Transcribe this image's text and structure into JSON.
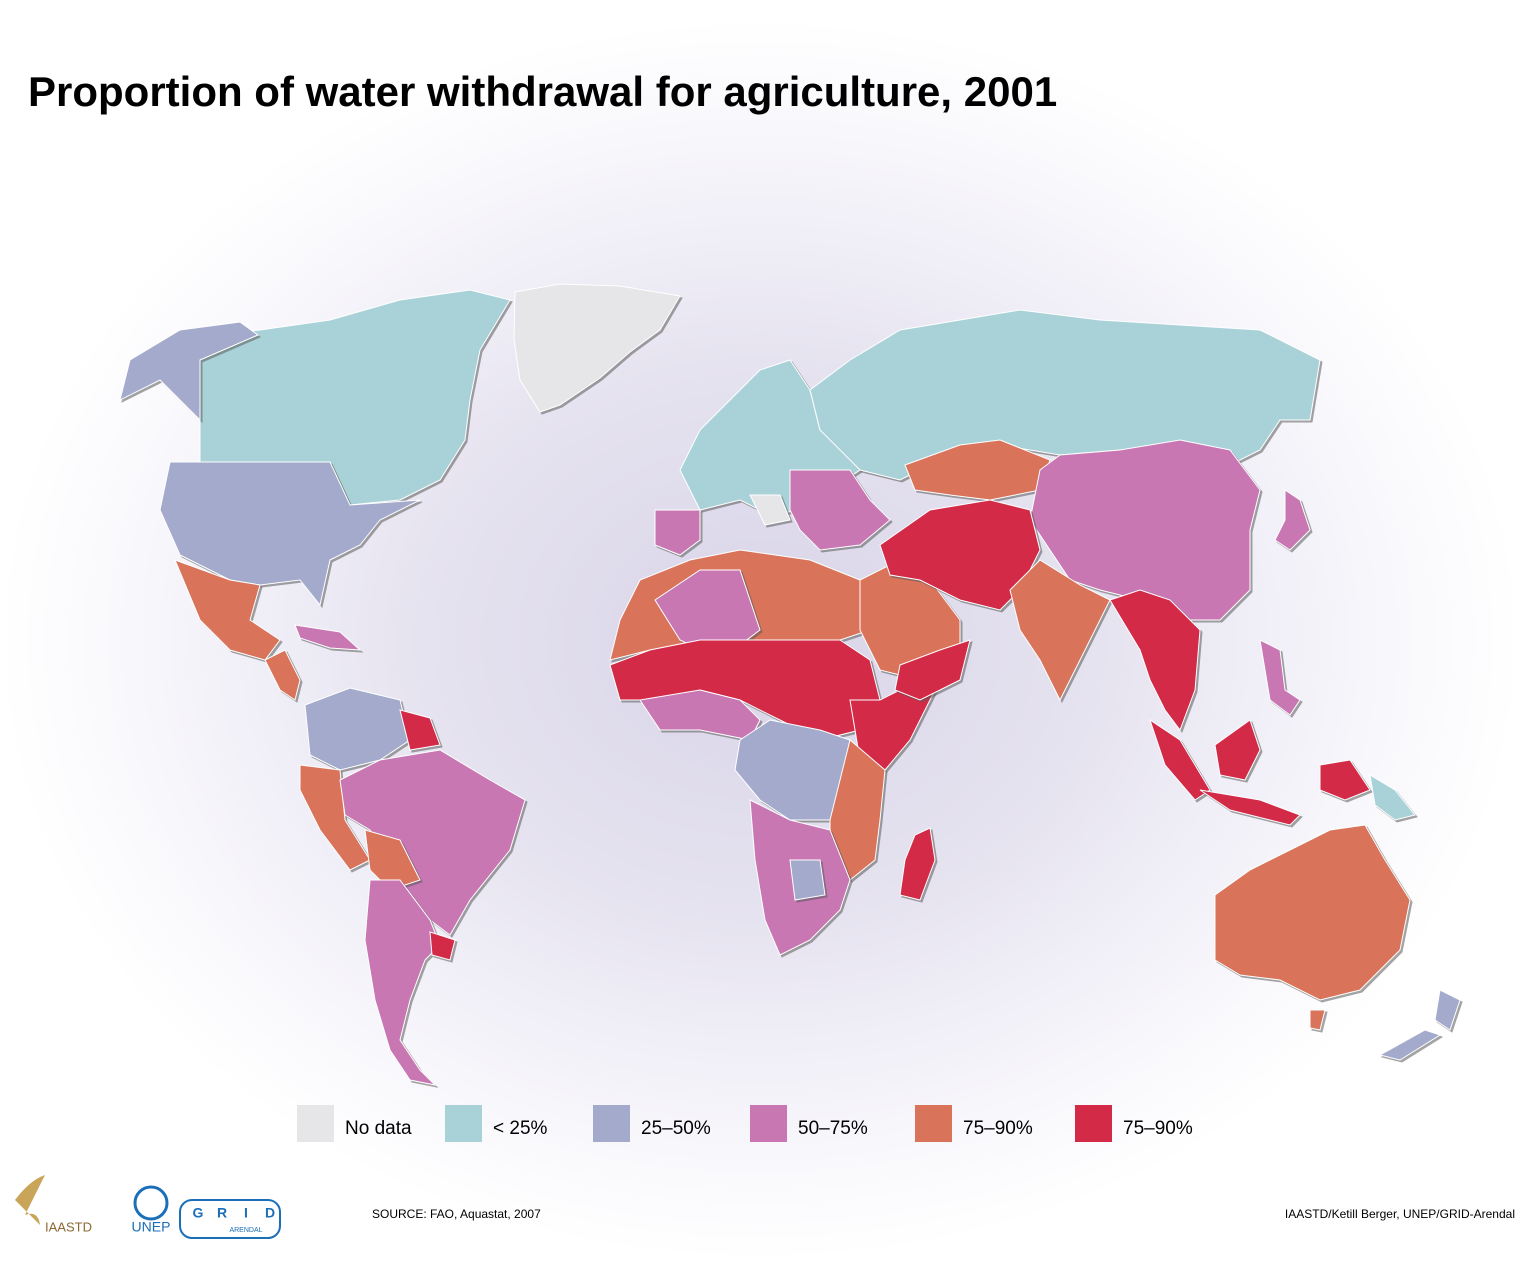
{
  "header": {
    "title": "Proportion of water withdrawal for agriculture, 2001"
  },
  "legend": {
    "items": [
      {
        "label": "No data",
        "color": "#e6e6e9"
      },
      {
        "label": "<  25%",
        "color": "#a9d2d8"
      },
      {
        "label": "25–50%",
        "color": "#a3aacb"
      },
      {
        "label": "50–75%",
        "color": "#c877b3"
      },
      {
        "label": "75–90%",
        "color": "#d9735a"
      },
      {
        "label": "75–90%",
        "color": "#d22a47"
      }
    ]
  },
  "footer": {
    "source": "SOURCE: FAO, Aquastat, 2007",
    "credit": "IAASTD/Ketill Berger, UNEP/GRID-Arendal",
    "logos": {
      "iaastd": "IAASTD",
      "unep": "UNEP",
      "grid": [
        "G",
        "R",
        "I",
        "D"
      ],
      "arendal": "ARENDAL"
    }
  }
}
